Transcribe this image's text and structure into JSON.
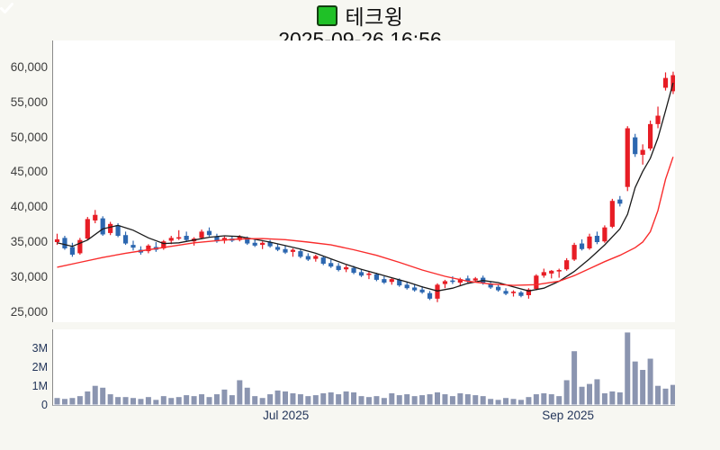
{
  "header": {
    "checkbox_icon": "check-mark",
    "title": "테크윙",
    "datetime": "2025-09-26 16:56"
  },
  "colors": {
    "up_candle": "#e71d25",
    "down_candle": "#2c67b0",
    "ma_short": "#1a1a1a",
    "ma_long": "#f92c2c",
    "volume_bar": "#8b95b0",
    "plot_bg": "#ffffff",
    "page_bg": "#f7f7f2",
    "axis_line": "#8a8a8a",
    "price_label": "#3d3d3d",
    "navy_label": "#24365a",
    "checkbox_green": "#1fc127"
  },
  "chart_data": [
    {
      "type": "candlestick",
      "title": "테크윙",
      "subtitle": "2025-09-26 16:56",
      "ylabel": "",
      "y_ticks": [
        60000,
        55000,
        50000,
        45000,
        40000,
        35000,
        30000,
        25000
      ],
      "ylim": [
        23500,
        63800
      ],
      "grid": false,
      "legend": "none",
      "candles_ohlc": [
        [
          35000,
          36200,
          34600,
          35400
        ],
        [
          35600,
          35900,
          33900,
          34100
        ],
        [
          34300,
          34900,
          32900,
          33200
        ],
        [
          33400,
          35600,
          33200,
          35300
        ],
        [
          35500,
          38600,
          35300,
          38300
        ],
        [
          38100,
          39600,
          37700,
          38900
        ],
        [
          38400,
          38700,
          35900,
          36100
        ],
        [
          36300,
          37900,
          36000,
          37600
        ],
        [
          37400,
          37700,
          35700,
          35900
        ],
        [
          36000,
          36500,
          34600,
          34800
        ],
        [
          34600,
          35200,
          33800,
          34200
        ],
        [
          33900,
          34400,
          33200,
          33500
        ],
        [
          33700,
          34700,
          33400,
          34500
        ],
        [
          34300,
          35000,
          33600,
          33900
        ],
        [
          34100,
          35300,
          33900,
          35100
        ],
        [
          35200,
          35900,
          34700,
          35600
        ],
        [
          35500,
          36700,
          35300,
          35700
        ],
        [
          35900,
          36500,
          35100,
          35300
        ],
        [
          35100,
          35700,
          34500,
          35500
        ],
        [
          35600,
          36800,
          35400,
          36500
        ],
        [
          36600,
          37100,
          35800,
          36000
        ],
        [
          35800,
          36200,
          34900,
          35100
        ],
        [
          35200,
          35800,
          34800,
          35600
        ],
        [
          35500,
          35900,
          35000,
          35200
        ],
        [
          35300,
          36000,
          35100,
          35800
        ],
        [
          35600,
          35800,
          34600,
          34800
        ],
        [
          34900,
          35400,
          34300,
          34500
        ],
        [
          34600,
          35100,
          34000,
          34900
        ],
        [
          35000,
          35300,
          34200,
          34400
        ],
        [
          34300,
          34700,
          33700,
          33900
        ],
        [
          34000,
          34500,
          33300,
          33500
        ],
        [
          33600,
          34100,
          32900,
          33900
        ],
        [
          33700,
          34000,
          32700,
          32900
        ],
        [
          33000,
          33400,
          32300,
          32500
        ],
        [
          32600,
          33200,
          32200,
          33000
        ],
        [
          32800,
          33000,
          31700,
          31900
        ],
        [
          32000,
          32500,
          31300,
          31500
        ],
        [
          31600,
          32000,
          30800,
          31000
        ],
        [
          31100,
          31700,
          30700,
          31400
        ],
        [
          31300,
          31600,
          30400,
          30600
        ],
        [
          30700,
          31100,
          30000,
          30200
        ],
        [
          30300,
          30800,
          29700,
          30500
        ],
        [
          30400,
          30600,
          29400,
          29600
        ],
        [
          29700,
          30100,
          29000,
          29200
        ],
        [
          29300,
          29900,
          28900,
          29700
        ],
        [
          29600,
          29800,
          28600,
          28800
        ],
        [
          28900,
          29300,
          28200,
          28400
        ],
        [
          28500,
          29000,
          27900,
          28100
        ],
        [
          28200,
          28700,
          27600,
          27800
        ],
        [
          27700,
          28000,
          26700,
          26900
        ],
        [
          26900,
          29100,
          26400,
          28900
        ],
        [
          29000,
          29600,
          28400,
          29400
        ],
        [
          29500,
          30100,
          29000,
          29300
        ],
        [
          29200,
          29900,
          28800,
          29700
        ],
        [
          29800,
          30200,
          29100,
          29400
        ],
        [
          29500,
          30000,
          29200,
          29800
        ],
        [
          29900,
          30200,
          28900,
          29100
        ],
        [
          29000,
          29400,
          28300,
          28500
        ],
        [
          28600,
          28900,
          27900,
          28100
        ],
        [
          28000,
          28400,
          27400,
          27600
        ],
        [
          27700,
          28100,
          27200,
          27900
        ],
        [
          27800,
          28000,
          27100,
          27300
        ],
        [
          27400,
          28400,
          26900,
          28200
        ],
        [
          28300,
          30400,
          28100,
          30200
        ],
        [
          30200,
          31200,
          29900,
          30700
        ],
        [
          30500,
          31000,
          29800,
          30900
        ],
        [
          30800,
          31200,
          29900,
          31000
        ],
        [
          31100,
          32700,
          30900,
          32400
        ],
        [
          32500,
          34900,
          32300,
          34600
        ],
        [
          34800,
          35400,
          33800,
          34000
        ],
        [
          34100,
          36200,
          33900,
          35800
        ],
        [
          35900,
          36500,
          34700,
          35000
        ],
        [
          35100,
          37400,
          34900,
          37100
        ],
        [
          37200,
          41200,
          37000,
          40900
        ],
        [
          41100,
          41600,
          40100,
          40500
        ],
        [
          42900,
          51600,
          42300,
          51300
        ],
        [
          50000,
          50500,
          47200,
          47600
        ],
        [
          47500,
          49000,
          46100,
          48200
        ],
        [
          48400,
          52400,
          48100,
          51900
        ],
        [
          51900,
          54400,
          51300,
          53100
        ],
        [
          57100,
          59300,
          56700,
          58500
        ],
        [
          56600,
          59400,
          56200,
          58900
        ]
      ],
      "ma_short_points": [
        [
          0,
          34900
        ],
        [
          2,
          34400
        ],
        [
          4,
          35300
        ],
        [
          6,
          36900
        ],
        [
          8,
          37400
        ],
        [
          10,
          36700
        ],
        [
          12,
          35600
        ],
        [
          14,
          34800
        ],
        [
          16,
          34900
        ],
        [
          18,
          35300
        ],
        [
          20,
          35700
        ],
        [
          22,
          35900
        ],
        [
          24,
          35800
        ],
        [
          26,
          35400
        ],
        [
          28,
          35000
        ],
        [
          30,
          34500
        ],
        [
          32,
          34000
        ],
        [
          34,
          33400
        ],
        [
          36,
          32600
        ],
        [
          38,
          31800
        ],
        [
          40,
          31100
        ],
        [
          42,
          30500
        ],
        [
          44,
          29900
        ],
        [
          46,
          29300
        ],
        [
          48,
          28600
        ],
        [
          50,
          28000
        ],
        [
          52,
          28400
        ],
        [
          54,
          29100
        ],
        [
          56,
          29500
        ],
        [
          58,
          29200
        ],
        [
          60,
          28600
        ],
        [
          62,
          28000
        ],
        [
          64,
          28400
        ],
        [
          66,
          29400
        ],
        [
          68,
          30800
        ],
        [
          70,
          32600
        ],
        [
          72,
          34600
        ],
        [
          74,
          36900
        ],
        [
          75,
          39000
        ],
        [
          76,
          42800
        ],
        [
          77,
          45100
        ],
        [
          78,
          47000
        ],
        [
          79,
          49900
        ],
        [
          80,
          53800
        ],
        [
          81,
          57800
        ]
      ],
      "ma_long_points": [
        [
          0,
          31400
        ],
        [
          3,
          32100
        ],
        [
          6,
          32800
        ],
        [
          9,
          33400
        ],
        [
          12,
          33900
        ],
        [
          15,
          34400
        ],
        [
          18,
          34900
        ],
        [
          21,
          35200
        ],
        [
          24,
          35450
        ],
        [
          27,
          35500
        ],
        [
          30,
          35350
        ],
        [
          33,
          35000
        ],
        [
          36,
          34600
        ],
        [
          39,
          33900
        ],
        [
          42,
          33100
        ],
        [
          45,
          32100
        ],
        [
          48,
          31000
        ],
        [
          51,
          30100
        ],
        [
          54,
          29400
        ],
        [
          57,
          29000
        ],
        [
          60,
          28800
        ],
        [
          63,
          28900
        ],
        [
          66,
          29400
        ],
        [
          68,
          30200
        ],
        [
          70,
          31200
        ],
        [
          72,
          32200
        ],
        [
          74,
          33100
        ],
        [
          76,
          34200
        ],
        [
          77,
          35000
        ],
        [
          78,
          36500
        ],
        [
          79,
          39500
        ],
        [
          80,
          44000
        ],
        [
          81,
          47200
        ]
      ]
    },
    {
      "type": "bar",
      "title": "volume",
      "y_ticks": [
        {
          "label": "3M",
          "value": 3
        },
        {
          "label": "2M",
          "value": 2
        },
        {
          "label": "1M",
          "value": 1
        },
        {
          "label": "0",
          "value": 0
        }
      ],
      "ylim": [
        0,
        4.0
      ],
      "values_millions": [
        0.35,
        0.3,
        0.35,
        0.45,
        0.7,
        1.0,
        0.9,
        0.55,
        0.4,
        0.4,
        0.35,
        0.3,
        0.4,
        0.25,
        0.45,
        0.35,
        0.4,
        0.5,
        0.45,
        0.55,
        0.4,
        0.55,
        0.8,
        0.5,
        1.3,
        0.9,
        0.45,
        0.35,
        0.55,
        0.75,
        0.7,
        0.6,
        0.55,
        0.45,
        0.5,
        0.6,
        0.65,
        0.55,
        0.7,
        0.65,
        0.45,
        0.4,
        0.45,
        0.35,
        0.6,
        0.5,
        0.55,
        0.45,
        0.5,
        0.55,
        0.65,
        0.55,
        0.45,
        0.6,
        0.55,
        0.5,
        0.45,
        0.3,
        0.25,
        0.35,
        0.3,
        0.25,
        0.4,
        0.55,
        0.6,
        0.55,
        0.45,
        1.3,
        2.85,
        0.95,
        1.1,
        1.35,
        0.6,
        0.7,
        0.65,
        3.85,
        2.3,
        1.85,
        2.45,
        1.0,
        0.85,
        1.05
      ],
      "x_labels": [
        {
          "label": "Jul 2025",
          "index": 30.2
        },
        {
          "label": "Sep 2025",
          "index": 67.3
        }
      ]
    }
  ]
}
